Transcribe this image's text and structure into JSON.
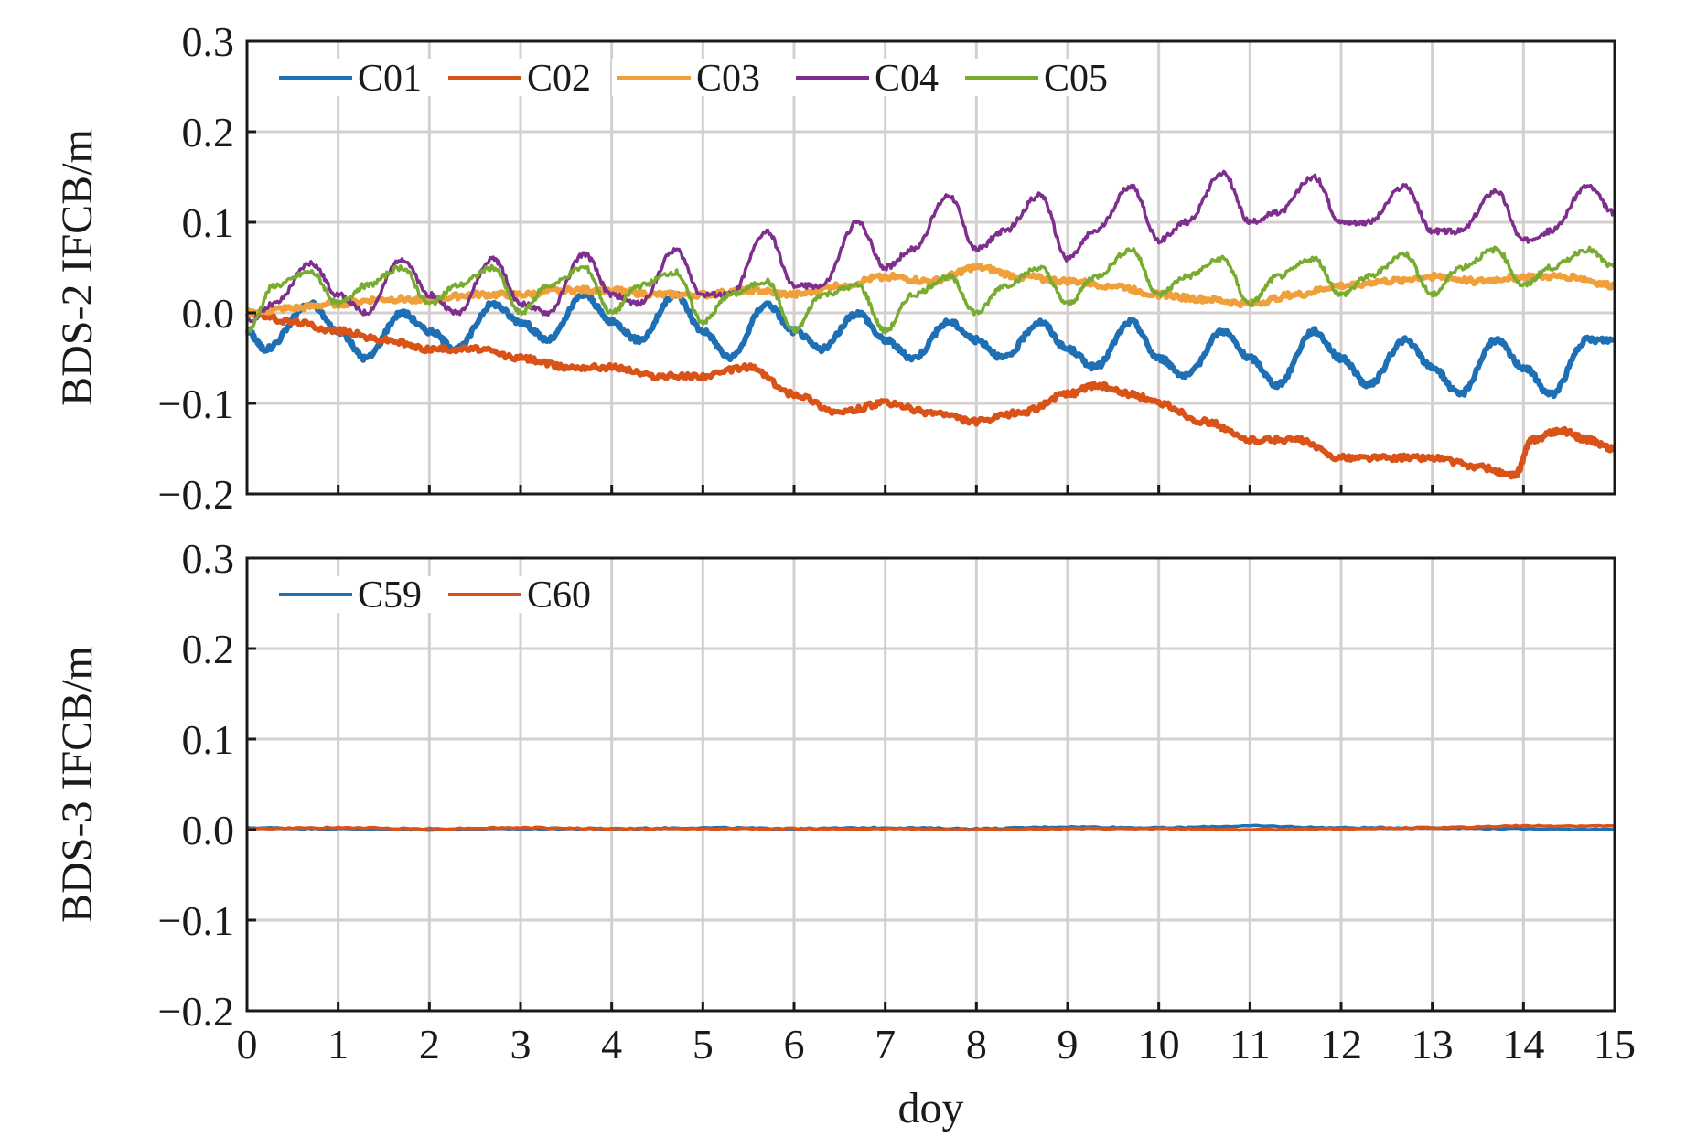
{
  "chart_data": [
    {
      "type": "line",
      "ylabel": "BDS-2 IFCB/m",
      "xlabel": "",
      "xlim": [
        0,
        15
      ],
      "ylim": [
        -0.2,
        0.3
      ],
      "xticks": [
        "0",
        "1",
        "2",
        "3",
        "4",
        "5",
        "6",
        "7",
        "8",
        "9",
        "10",
        "11",
        "12",
        "13",
        "14",
        "15"
      ],
      "yticks": [
        "0.3",
        "0.2",
        "0.1",
        "0.0",
        "−0.1",
        "−0.2"
      ],
      "ytick_values": [
        0.3,
        0.2,
        0.1,
        0.0,
        -0.1,
        -0.2
      ],
      "grid": true,
      "legend_position": "top-left",
      "series": [
        {
          "name": "C01",
          "color": "#1f6fb4",
          "x": [
            0,
            0.2,
            0.7,
            1.0,
            1.3,
            1.7,
            2.0,
            2.3,
            2.7,
            3.0,
            3.3,
            3.7,
            4.0,
            4.3,
            4.7,
            5.0,
            5.3,
            5.7,
            6.0,
            6.3,
            6.7,
            7.0,
            7.3,
            7.7,
            8.0,
            8.3,
            8.7,
            9.0,
            9.3,
            9.7,
            10.0,
            10.3,
            10.7,
            11.0,
            11.3,
            11.7,
            12.0,
            12.3,
            12.7,
            13.0,
            13.3,
            13.7,
            14.0,
            14.3,
            14.7,
            15.0
          ],
          "y": [
            -0.02,
            -0.04,
            0.01,
            -0.02,
            -0.05,
            0.0,
            -0.02,
            -0.04,
            0.01,
            -0.01,
            -0.03,
            0.02,
            -0.01,
            -0.03,
            0.02,
            -0.02,
            -0.05,
            0.01,
            -0.02,
            -0.04,
            0.0,
            -0.03,
            -0.05,
            -0.01,
            -0.03,
            -0.05,
            -0.01,
            -0.04,
            -0.06,
            -0.01,
            -0.05,
            -0.07,
            -0.02,
            -0.05,
            -0.08,
            -0.02,
            -0.05,
            -0.08,
            -0.03,
            -0.06,
            -0.09,
            -0.03,
            -0.06,
            -0.09,
            -0.03,
            -0.03
          ]
        },
        {
          "name": "C02",
          "color": "#d95319",
          "x": [
            0,
            0.5,
            1.0,
            1.5,
            2.0,
            2.5,
            3.0,
            3.5,
            4.0,
            4.5,
            5.0,
            5.5,
            6.0,
            6.5,
            7.0,
            7.5,
            8.0,
            8.5,
            9.0,
            9.3,
            9.7,
            10.0,
            10.5,
            11.0,
            11.5,
            12.0,
            12.5,
            13.0,
            13.5,
            13.9,
            14.1,
            14.4,
            14.7,
            15.0
          ],
          "y": [
            0.0,
            -0.01,
            -0.02,
            -0.03,
            -0.04,
            -0.04,
            -0.05,
            -0.06,
            -0.06,
            -0.07,
            -0.07,
            -0.06,
            -0.09,
            -0.11,
            -0.1,
            -0.11,
            -0.12,
            -0.11,
            -0.09,
            -0.08,
            -0.09,
            -0.1,
            -0.12,
            -0.14,
            -0.14,
            -0.16,
            -0.16,
            -0.16,
            -0.17,
            -0.18,
            -0.14,
            -0.13,
            -0.14,
            -0.15
          ]
        },
        {
          "name": "C03",
          "color": "#f0a03a",
          "x": [
            0,
            0.5,
            1.0,
            1.5,
            2.0,
            2.5,
            3.0,
            3.5,
            4.0,
            4.5,
            5.0,
            5.5,
            6.0,
            6.5,
            7.0,
            7.5,
            8.0,
            8.5,
            9.0,
            9.5,
            10.0,
            10.5,
            11.0,
            11.5,
            12.0,
            12.5,
            13.0,
            13.5,
            14.0,
            14.5,
            15.0
          ],
          "y": [
            0.0,
            0.005,
            0.01,
            0.015,
            0.015,
            0.02,
            0.02,
            0.025,
            0.025,
            0.02,
            0.02,
            0.025,
            0.02,
            0.03,
            0.04,
            0.035,
            0.05,
            0.04,
            0.035,
            0.03,
            0.02,
            0.015,
            0.01,
            0.02,
            0.03,
            0.035,
            0.04,
            0.035,
            0.04,
            0.04,
            0.03
          ]
        },
        {
          "name": "C04",
          "color": "#7e2f8e",
          "x": [
            0,
            0.3,
            0.7,
            1.0,
            1.3,
            1.7,
            2.0,
            2.3,
            2.7,
            3.0,
            3.3,
            3.7,
            4.0,
            4.3,
            4.7,
            5.0,
            5.3,
            5.7,
            6.0,
            6.3,
            6.7,
            7.0,
            7.3,
            7.7,
            8.0,
            8.3,
            8.7,
            9.0,
            9.3,
            9.7,
            10.0,
            10.3,
            10.7,
            11.0,
            11.3,
            11.7,
            12.0,
            12.3,
            12.7,
            13.0,
            13.3,
            13.7,
            14.0,
            14.3,
            14.7,
            15.0
          ],
          "y": [
            -0.01,
            0.01,
            0.055,
            0.02,
            0.0,
            0.06,
            0.02,
            0.0,
            0.06,
            0.01,
            0.0,
            0.065,
            0.02,
            0.01,
            0.07,
            0.02,
            0.02,
            0.09,
            0.03,
            0.03,
            0.1,
            0.05,
            0.07,
            0.13,
            0.07,
            0.09,
            0.13,
            0.06,
            0.09,
            0.14,
            0.08,
            0.1,
            0.155,
            0.1,
            0.11,
            0.15,
            0.1,
            0.1,
            0.14,
            0.09,
            0.09,
            0.135,
            0.08,
            0.09,
            0.14,
            0.11
          ]
        },
        {
          "name": "C05",
          "color": "#77ac30",
          "x": [
            0,
            0.3,
            0.7,
            1.0,
            1.3,
            1.7,
            2.0,
            2.3,
            2.7,
            3.0,
            3.3,
            3.7,
            4.0,
            4.3,
            4.7,
            5.0,
            5.3,
            5.7,
            6.0,
            6.3,
            6.7,
            7.0,
            7.3,
            7.7,
            8.0,
            8.3,
            8.7,
            9.0,
            9.3,
            9.7,
            10.0,
            10.3,
            10.7,
            11.0,
            11.3,
            11.7,
            12.0,
            12.3,
            12.7,
            13.0,
            13.3,
            13.7,
            14.0,
            14.3,
            14.7,
            15.0
          ],
          "y": [
            -0.02,
            0.03,
            0.045,
            0.01,
            0.03,
            0.05,
            0.01,
            0.03,
            0.05,
            0.0,
            0.03,
            0.05,
            0.0,
            0.03,
            0.045,
            -0.01,
            0.02,
            0.035,
            -0.02,
            0.02,
            0.03,
            -0.02,
            0.02,
            0.04,
            0.0,
            0.03,
            0.05,
            0.01,
            0.04,
            0.07,
            0.02,
            0.04,
            0.06,
            0.01,
            0.04,
            0.06,
            0.02,
            0.04,
            0.065,
            0.02,
            0.05,
            0.07,
            0.03,
            0.05,
            0.07,
            0.05
          ]
        }
      ]
    },
    {
      "type": "line",
      "ylabel": "BDS-3 IFCB/m",
      "xlabel": "doy",
      "xlim": [
        0,
        15
      ],
      "ylim": [
        -0.2,
        0.3
      ],
      "xticks": [
        "0",
        "1",
        "2",
        "3",
        "4",
        "5",
        "6",
        "7",
        "8",
        "9",
        "10",
        "11",
        "12",
        "13",
        "14",
        "15"
      ],
      "yticks": [
        "0.3",
        "0.2",
        "0.1",
        "0.0",
        "−0.1",
        "−0.2"
      ],
      "ytick_values": [
        0.3,
        0.2,
        0.1,
        0.0,
        -0.1,
        -0.2
      ],
      "grid": true,
      "legend_position": "top-left",
      "series": [
        {
          "name": "C59",
          "color": "#1f6fb4",
          "x": [
            0,
            1,
            2,
            3,
            4,
            5,
            6,
            7,
            8,
            9,
            10,
            11,
            12,
            13,
            14,
            15
          ],
          "y": [
            0.002,
            0.001,
            0.0,
            0.001,
            0.001,
            0.002,
            0.001,
            0.002,
            0.001,
            0.003,
            0.002,
            0.004,
            0.002,
            0.002,
            0.001,
            0.0
          ]
        },
        {
          "name": "C60",
          "color": "#d95319",
          "x": [
            0,
            1,
            2,
            3,
            4,
            5,
            6,
            7,
            8,
            9,
            10,
            11,
            12,
            13,
            14,
            15
          ],
          "y": [
            0.001,
            0.002,
            0.001,
            0.002,
            0.001,
            0.001,
            0.001,
            0.001,
            0.0,
            0.001,
            0.001,
            0.0,
            0.001,
            0.002,
            0.004,
            0.004
          ]
        }
      ]
    }
  ]
}
